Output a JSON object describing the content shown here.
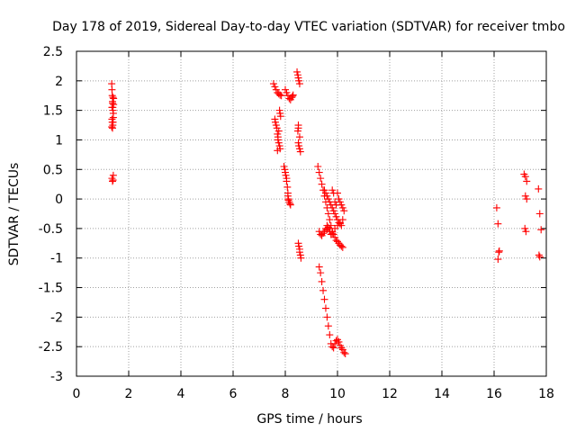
{
  "chart_data": {
    "type": "scatter",
    "title": "Day 178 of 2019, Sidereal Day-to-day VTEC variation (SDTVAR) for receiver tmbo",
    "xlabel": "GPS time / hours",
    "ylabel": "SDTVAR / TECUs",
    "xlim": [
      0,
      18
    ],
    "ylim": [
      -3,
      2.5
    ],
    "x_ticks": [
      0,
      2,
      4,
      6,
      8,
      10,
      12,
      14,
      16,
      18
    ],
    "x_tick_labels": [
      "0",
      "2",
      "4",
      "6",
      "8",
      "10",
      "12",
      "14",
      "16",
      "18"
    ],
    "y_ticks": [
      -3,
      -2.5,
      -2,
      -1.5,
      -1,
      -0.5,
      0,
      0.5,
      1,
      1.5,
      2,
      2.5
    ],
    "y_tick_labels": [
      "-3",
      "-2.5",
      "-2",
      "-1.5",
      "-1",
      "-0.5",
      "0",
      "0.5",
      "1",
      "1.5",
      "2",
      "2.5"
    ],
    "grid": true,
    "marker": "+",
    "marker_color": "#ff0000",
    "series": [
      {
        "name": "SDTVAR",
        "x": [
          1.35,
          1.36,
          1.37,
          1.38,
          1.39,
          1.4,
          1.41,
          1.42,
          1.42,
          1.41,
          1.4,
          1.39,
          1.38,
          1.37,
          1.36,
          1.35,
          1.36,
          1.38,
          1.4,
          1.41,
          1.36,
          1.38,
          1.4,
          7.55,
          7.6,
          7.65,
          7.7,
          7.75,
          7.8,
          7.85,
          7.6,
          7.62,
          7.65,
          7.68,
          7.7,
          7.72,
          7.75,
          7.78,
          7.8,
          7.82,
          7.8,
          7.78,
          7.75,
          7.72,
          7.7,
          8.0,
          8.05,
          8.1,
          8.15,
          8.2,
          8.25,
          8.28,
          8.3,
          7.95,
          7.98,
          8.0,
          8.02,
          8.05,
          8.08,
          8.1,
          8.12,
          8.15,
          8.18,
          8.2,
          8.1,
          8.12,
          8.05,
          8.45,
          8.48,
          8.5,
          8.52,
          8.55,
          8.5,
          8.48,
          8.5,
          8.52,
          8.55,
          8.58,
          8.5,
          8.55,
          8.5,
          8.52,
          8.55,
          8.58,
          8.6,
          8.55,
          9.25,
          9.3,
          9.35,
          9.4,
          9.45,
          9.5,
          9.55,
          9.6,
          9.65,
          9.7,
          9.75,
          9.8,
          9.85,
          9.9,
          9.95,
          10.0,
          10.05,
          10.1,
          10.15,
          10.2,
          9.3,
          9.35,
          9.4,
          9.45,
          9.5,
          9.55,
          9.6,
          9.65,
          9.7,
          9.75,
          9.8,
          9.5,
          9.55,
          9.6,
          9.65,
          9.7,
          9.75,
          9.8,
          9.85,
          9.9,
          9.95,
          10.0,
          10.05,
          10.1,
          10.15,
          9.8,
          9.85,
          9.9,
          9.95,
          10.0,
          10.05,
          10.1,
          10.15,
          10.2,
          10.25,
          9.6,
          9.7,
          9.8,
          9.9,
          10.0,
          10.1,
          10.2,
          9.3,
          9.35,
          9.4,
          9.45,
          9.5,
          9.55,
          9.6,
          9.65,
          9.7,
          9.75,
          9.8,
          9.85,
          9.9,
          9.95,
          10.0,
          10.05,
          10.1,
          10.15,
          10.2,
          10.25,
          10.3,
          16.1,
          16.15,
          16.2,
          16.15,
          16.18,
          17.15,
          17.2,
          17.25,
          17.2,
          17.25,
          17.18,
          17.22,
          17.7,
          17.75,
          17.8,
          17.72,
          17.75
        ],
        "y": [
          1.95,
          1.85,
          1.75,
          1.65,
          1.55,
          1.5,
          1.45,
          1.6,
          1.7,
          1.38,
          1.3,
          1.25,
          1.2,
          1.3,
          1.35,
          1.22,
          0.35,
          0.3,
          0.32,
          0.4,
          1.55,
          1.62,
          1.72,
          1.95,
          1.9,
          1.85,
          1.8,
          1.78,
          1.76,
          1.75,
          1.35,
          1.3,
          1.25,
          1.2,
          1.1,
          1.0,
          0.95,
          0.9,
          0.85,
          1.4,
          1.45,
          1.5,
          1.15,
          1.05,
          0.82,
          1.85,
          1.8,
          1.75,
          1.7,
          1.68,
          1.72,
          1.74,
          1.76,
          0.55,
          0.5,
          0.45,
          0.4,
          0.3,
          0.2,
          0.1,
          0.0,
          -0.05,
          -0.08,
          -0.1,
          0.05,
          -0.02,
          0.35,
          2.15,
          2.1,
          2.05,
          2.0,
          1.95,
          1.2,
          1.15,
          0.95,
          0.9,
          0.85,
          0.8,
          1.25,
          1.05,
          -0.75,
          -0.8,
          -0.9,
          -0.95,
          -1.0,
          -0.85,
          0.55,
          0.45,
          0.35,
          0.25,
          0.15,
          0.05,
          -0.05,
          -0.15,
          -0.25,
          -0.35,
          -0.45,
          -0.55,
          -0.6,
          -0.65,
          -0.7,
          -0.72,
          -0.75,
          -0.78,
          -0.8,
          -0.82,
          -0.55,
          -0.6,
          -0.62,
          -0.58,
          -0.55,
          -0.5,
          -0.52,
          -0.48,
          -0.55,
          -0.6,
          -0.58,
          0.15,
          0.1,
          0.05,
          0.0,
          -0.05,
          -0.1,
          -0.15,
          -0.2,
          -0.25,
          -0.3,
          -0.35,
          -0.4,
          -0.42,
          -0.45,
          0.15,
          0.1,
          -0.05,
          -0.1,
          0.1,
          0.0,
          -0.05,
          -0.1,
          -0.15,
          -0.2,
          -0.45,
          -0.5,
          -0.55,
          -0.5,
          -0.45,
          -0.4,
          -0.35,
          -1.15,
          -1.25,
          -1.4,
          -1.55,
          -1.7,
          -1.85,
          -2.0,
          -2.15,
          -2.3,
          -2.45,
          -2.5,
          -2.52,
          -2.45,
          -2.4,
          -2.38,
          -2.42,
          -2.48,
          -2.52,
          -2.55,
          -2.6,
          -2.62,
          -0.15,
          -0.42,
          -0.88,
          -1.02,
          -0.9,
          0.42,
          0.38,
          0.3,
          0.05,
          0.0,
          -0.5,
          -0.55,
          0.17,
          -0.25,
          -0.52,
          -0.95,
          -0.98
        ]
      }
    ]
  }
}
